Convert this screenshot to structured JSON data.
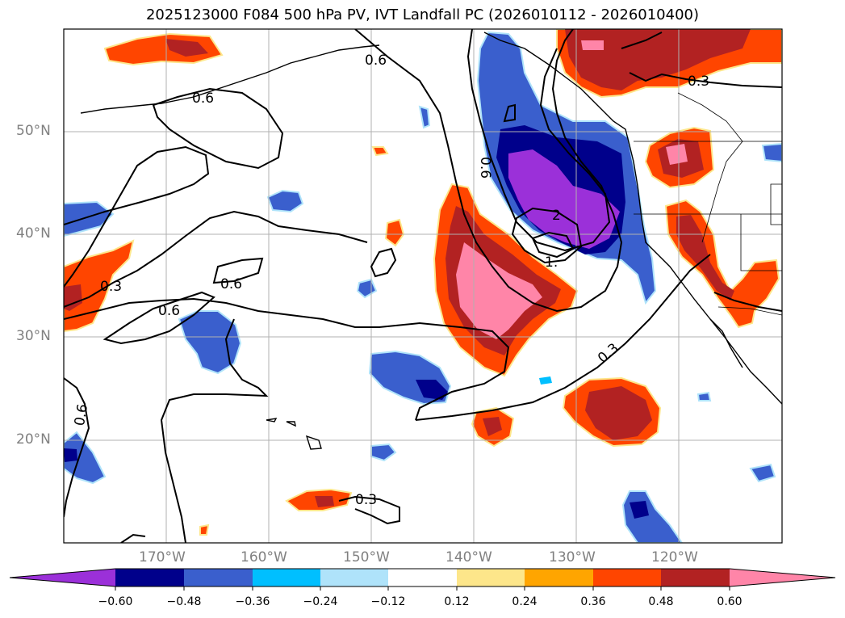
{
  "title": "2025123000 F084 500 hPa PV, IVT Landfall PC (2026010112 - 2026010400)",
  "axes": {
    "longitude_labels": [
      "170°W",
      "160°W",
      "150°W",
      "140°W",
      "130°W",
      "120°W"
    ],
    "longitude_values": [
      -170,
      -160,
      -150,
      -140,
      -130,
      -120
    ],
    "latitude_labels": [
      "50°N",
      "40°N",
      "30°N",
      "20°N"
    ],
    "latitude_values": [
      50,
      40,
      30,
      20
    ],
    "lon_range": [
      -180,
      -110
    ],
    "lat_range": [
      10,
      60
    ]
  },
  "colorbar": {
    "tick_labels": [
      "−0.60",
      "−0.48",
      "−0.36",
      "−0.24",
      "−0.12",
      "0.12",
      "0.24",
      "0.36",
      "0.48",
      "0.60"
    ],
    "colors": [
      "#9b30d9",
      "#00008b",
      "#3a5fcd",
      "#00bfff",
      "#afe3fa",
      "#ffffff",
      "#fde68a",
      "#ffa500",
      "#ff4500",
      "#b22222",
      "#ff85a8"
    ]
  },
  "contour_labels": {
    "c06_nw": "0.6",
    "c06_w": "0.6",
    "c06_n": "0.6",
    "c06_mid": "0.6",
    "c06_left": "0.6",
    "c06_sw": "0.6",
    "c03_ne": "0.3",
    "c03_w": "0.3",
    "c03_se": "0.3",
    "c03_s": "0.3",
    "c1_low": "1.",
    "c2_low": "2"
  }
}
